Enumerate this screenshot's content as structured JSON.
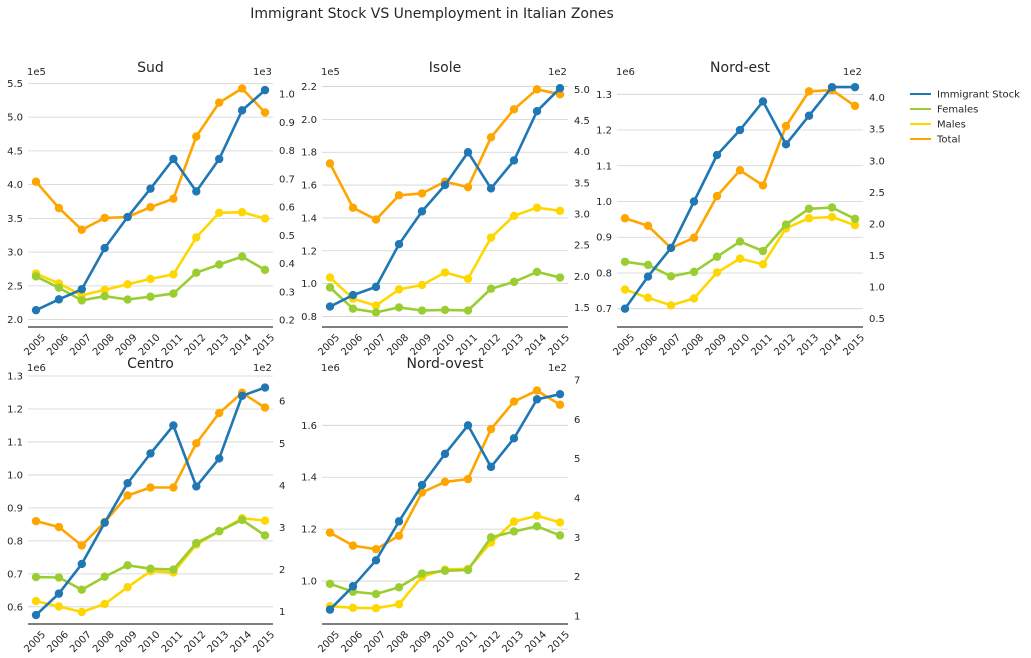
{
  "suptitle": "Immigrant Stock VS Unemployment in Italian Zones",
  "legend": {
    "placement": "right",
    "entries": [
      {
        "label": "Immigrant Stock",
        "color": "#1f77b4"
      },
      {
        "label": "Females",
        "color": "#9acd32"
      },
      {
        "label": "Males",
        "color": "#ffd700"
      },
      {
        "label": "Total",
        "color": "#ffa500"
      }
    ]
  },
  "chart_data": [
    {
      "type": "line",
      "title": "Sud",
      "categories": [
        "2005",
        "2006",
        "2007",
        "2008",
        "2009",
        "2010",
        "2011",
        "2012",
        "2013",
        "2014",
        "2015"
      ],
      "left_axis": {
        "offset_text": "1e5",
        "ylim": [
          1.95,
          5.55
        ],
        "ticks": [
          2.0,
          2.5,
          3.0,
          3.5,
          4.0,
          4.5,
          5.0,
          5.5
        ],
        "tick_labels": [
          "2.0",
          "2.5",
          "3.0",
          "3.5",
          "4.0",
          "4.5",
          "5.0",
          "5.5"
        ]
      },
      "right_axis": {
        "offset_text": "1e3",
        "ylim": [
          0.19,
          1.05
        ],
        "ticks": [
          0.2,
          0.3,
          0.4,
          0.5,
          0.6,
          0.7,
          0.8,
          0.9,
          1.0
        ],
        "tick_labels": [
          "0.2",
          "0.3",
          "0.4",
          "0.5",
          "0.6",
          "0.7",
          "0.8",
          "0.9",
          "1.0"
        ]
      },
      "grid": true,
      "series": [
        {
          "name": "Immigrant Stock",
          "axis": "left",
          "color": "#1f77b4",
          "values": [
            2.14,
            2.3,
            2.45,
            3.06,
            3.52,
            3.94,
            4.38,
            3.9,
            4.38,
            5.1,
            5.4
          ]
        },
        {
          "name": "Females",
          "axis": "right",
          "color": "#9acd32",
          "values": [
            0.355,
            0.315,
            0.27,
            0.285,
            0.273,
            0.283,
            0.294,
            0.368,
            0.397,
            0.425,
            0.378
          ]
        },
        {
          "name": "Males",
          "axis": "right",
          "color": "#ffd700",
          "values": [
            0.365,
            0.33,
            0.288,
            0.307,
            0.327,
            0.346,
            0.362,
            0.493,
            0.58,
            0.582,
            0.56
          ]
        },
        {
          "name": "Total",
          "axis": "right",
          "color": "#ffa500",
          "values": [
            0.69,
            0.597,
            0.52,
            0.562,
            0.565,
            0.6,
            0.63,
            0.85,
            0.97,
            1.02,
            0.935
          ]
        }
      ]
    },
    {
      "type": "line",
      "title": "Isole",
      "categories": [
        "2005",
        "2006",
        "2007",
        "2008",
        "2009",
        "2010",
        "2011",
        "2012",
        "2013",
        "2014",
        "2015"
      ],
      "left_axis": {
        "offset_text": "1e5",
        "ylim": [
          0.76,
          2.24
        ],
        "ticks": [
          0.8,
          1.0,
          1.2,
          1.4,
          1.6,
          1.8,
          2.0,
          2.2
        ],
        "tick_labels": [
          "0.8",
          "1.0",
          "1.2",
          "1.4",
          "1.6",
          "1.8",
          "2.0",
          "2.2"
        ]
      },
      "right_axis": {
        "offset_text": "1e2",
        "ylim": [
          1.25,
          5.15
        ],
        "ticks": [
          1.5,
          2.0,
          2.5,
          3.0,
          3.5,
          4.0,
          4.5,
          5.0
        ],
        "tick_labels": [
          "1.5",
          "2.0",
          "2.5",
          "3.0",
          "3.5",
          "4.0",
          "4.5",
          "5.0"
        ]
      },
      "grid": true,
      "series": [
        {
          "name": "Immigrant Stock",
          "axis": "left",
          "color": "#1f77b4",
          "values": [
            0.86,
            0.93,
            0.98,
            1.24,
            1.44,
            1.6,
            1.8,
            1.58,
            1.75,
            2.05,
            2.19
          ]
        },
        {
          "name": "Females",
          "axis": "right",
          "color": "#9acd32",
          "values": [
            1.82,
            1.48,
            1.42,
            1.5,
            1.45,
            1.46,
            1.45,
            1.8,
            1.91,
            2.07,
            1.98
          ]
        },
        {
          "name": "Males",
          "axis": "right",
          "color": "#ffd700",
          "values": [
            1.98,
            1.64,
            1.53,
            1.79,
            1.86,
            2.06,
            1.96,
            2.62,
            2.97,
            3.1,
            3.05
          ]
        },
        {
          "name": "Total",
          "axis": "right",
          "color": "#ffa500",
          "values": [
            3.81,
            3.1,
            2.91,
            3.3,
            3.33,
            3.52,
            3.43,
            4.23,
            4.68,
            5.0,
            4.92
          ]
        }
      ]
    },
    {
      "type": "line",
      "title": "Nord-est",
      "categories": [
        "2005",
        "2006",
        "2007",
        "2008",
        "2009",
        "2010",
        "2011",
        "2012",
        "2013",
        "2014",
        "2015"
      ],
      "left_axis": {
        "offset_text": "1e6",
        "ylim": [
          0.66,
          1.34
        ],
        "ticks": [
          0.7,
          0.8,
          0.9,
          1.0,
          1.1,
          1.2,
          1.3
        ],
        "tick_labels": [
          "0.7",
          "0.8",
          "0.9",
          "1.0",
          "1.1",
          "1.2",
          "1.3"
        ]
      },
      "right_axis": {
        "offset_text": "1e2",
        "ylim": [
          0.43,
          4.28
        ],
        "ticks": [
          0.5,
          1.0,
          1.5,
          2.0,
          2.5,
          3.0,
          3.5,
          4.0
        ],
        "tick_labels": [
          "0.5",
          "1.0",
          "1.5",
          "2.0",
          "2.5",
          "3.0",
          "3.5",
          "4.0"
        ]
      },
      "grid": true,
      "series": [
        {
          "name": "Immigrant Stock",
          "axis": "left",
          "color": "#1f77b4",
          "values": [
            0.7,
            0.79,
            0.87,
            1.0,
            1.13,
            1.2,
            1.28,
            1.16,
            1.24,
            1.32,
            1.32
          ]
        },
        {
          "name": "Females",
          "axis": "right",
          "color": "#9acd32",
          "values": [
            1.4,
            1.35,
            1.17,
            1.24,
            1.48,
            1.72,
            1.57,
            1.99,
            2.24,
            2.26,
            2.08
          ]
        },
        {
          "name": "Males",
          "axis": "right",
          "color": "#ffd700",
          "values": [
            0.96,
            0.83,
            0.71,
            0.82,
            1.23,
            1.45,
            1.36,
            1.93,
            2.09,
            2.11,
            1.98
          ]
        },
        {
          "name": "Total",
          "axis": "right",
          "color": "#ffa500",
          "values": [
            2.09,
            1.97,
            1.62,
            1.78,
            2.44,
            2.85,
            2.61,
            3.55,
            4.1,
            4.12,
            3.87
          ]
        }
      ]
    },
    {
      "type": "line",
      "title": "Centro",
      "categories": [
        "2005",
        "2006",
        "2007",
        "2008",
        "2009",
        "2010",
        "2011",
        "2012",
        "2013",
        "2014",
        "2015"
      ],
      "left_axis": {
        "offset_text": "1e6",
        "ylim": [
          0.56,
          1.3
        ],
        "ticks": [
          0.6,
          0.7,
          0.8,
          0.9,
          1.0,
          1.1,
          1.2,
          1.3
        ],
        "tick_labels": [
          "0.6",
          "0.7",
          "0.8",
          "0.9",
          "1.0",
          "1.1",
          "1.2",
          "1.3"
        ]
      },
      "right_axis": {
        "offset_text": "1e2",
        "ylim": [
          0.8,
          6.6
        ],
        "ticks": [
          1,
          2,
          3,
          4,
          5,
          6
        ],
        "tick_labels": [
          "1",
          "2",
          "3",
          "4",
          "5",
          "6"
        ]
      },
      "grid": true,
      "series": [
        {
          "name": "Immigrant Stock",
          "axis": "left",
          "color": "#1f77b4",
          "values": [
            0.575,
            0.64,
            0.73,
            0.855,
            0.975,
            1.065,
            1.15,
            0.965,
            1.05,
            1.24,
            1.265
          ]
        },
        {
          "name": "Females",
          "axis": "right",
          "color": "#9acd32",
          "values": [
            1.82,
            1.81,
            1.52,
            1.83,
            2.1,
            2.02,
            2.0,
            2.63,
            2.91,
            3.18,
            2.81
          ]
        },
        {
          "name": "Males",
          "axis": "right",
          "color": "#ffd700",
          "values": [
            1.25,
            1.12,
            0.99,
            1.18,
            1.58,
            1.96,
            1.93,
            2.59,
            2.91,
            3.22,
            3.16
          ]
        },
        {
          "name": "Total",
          "axis": "right",
          "color": "#ffa500",
          "values": [
            3.15,
            3.01,
            2.57,
            3.13,
            3.76,
            3.95,
            3.95,
            5.0,
            5.72,
            6.2,
            5.85
          ]
        }
      ]
    },
    {
      "type": "line",
      "title": "Nord-ovest",
      "categories": [
        "2005",
        "2006",
        "2007",
        "2008",
        "2009",
        "2010",
        "2011",
        "2012",
        "2013",
        "2014",
        "2015"
      ],
      "left_axis": {
        "offset_text": "1e6",
        "ylim": [
          0.85,
          1.79
        ],
        "ticks": [
          1.0,
          1.2,
          1.4,
          1.6
        ],
        "tick_labels": [
          "1.0",
          "1.2",
          "1.4",
          "1.6"
        ]
      },
      "right_axis": {
        "offset_text": "1e2",
        "ylim": [
          0.9,
          7.1
        ],
        "ticks": [
          1,
          2,
          3,
          4,
          5,
          6,
          7
        ],
        "tick_labels": [
          "1",
          "2",
          "3",
          "4",
          "5",
          "6",
          "7"
        ]
      },
      "grid": true,
      "series": [
        {
          "name": "Immigrant Stock",
          "axis": "left",
          "color": "#1f77b4",
          "values": [
            0.89,
            0.98,
            1.08,
            1.23,
            1.37,
            1.49,
            1.6,
            1.44,
            1.55,
            1.7,
            1.72
          ]
        },
        {
          "name": "Females",
          "axis": "right",
          "color": "#9acd32",
          "values": [
            1.82,
            1.62,
            1.56,
            1.73,
            2.08,
            2.15,
            2.17,
            3.0,
            3.15,
            3.28,
            3.05
          ]
        },
        {
          "name": "Males",
          "axis": "right",
          "color": "#ffd700",
          "values": [
            1.25,
            1.21,
            1.2,
            1.3,
            2.0,
            2.18,
            2.2,
            2.87,
            3.4,
            3.55,
            3.38
          ]
        },
        {
          "name": "Total",
          "axis": "right",
          "color": "#ffa500",
          "values": [
            3.12,
            2.79,
            2.7,
            3.04,
            4.14,
            4.41,
            4.48,
            5.75,
            6.45,
            6.73,
            6.37
          ]
        }
      ]
    }
  ]
}
